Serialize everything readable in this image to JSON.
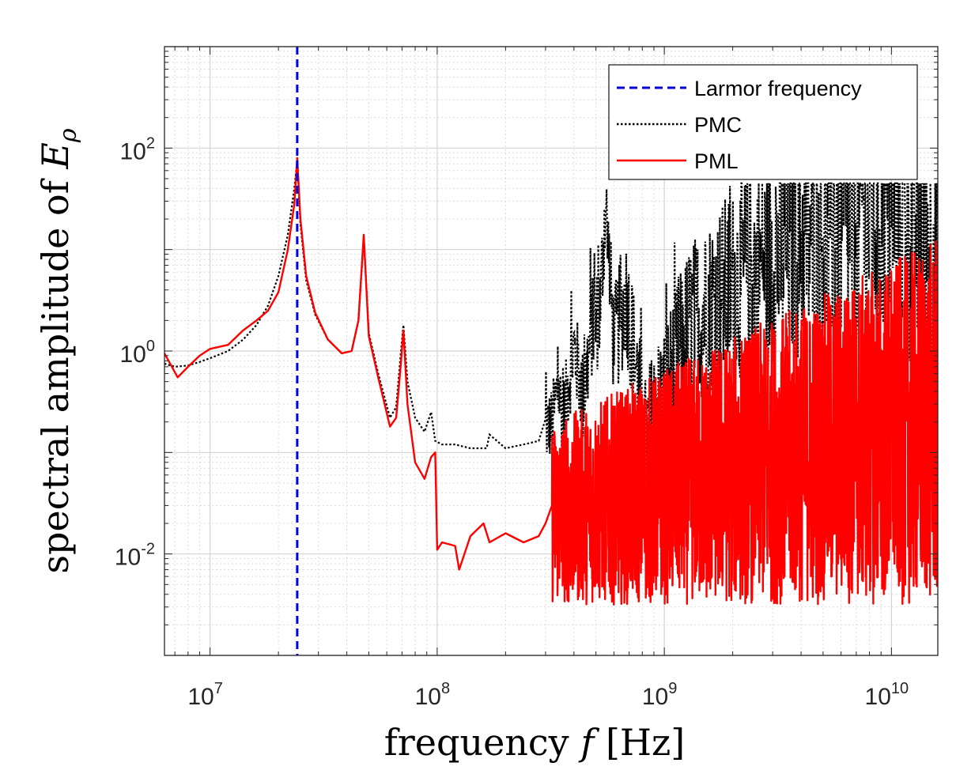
{
  "chart_data": {
    "type": "line",
    "title": "",
    "xlabel": "frequency",
    "xlabel_var": "f",
    "xlabel_unit": "[Hz]",
    "ylabel": "spectral amplitude of",
    "ylabel_var": "E",
    "ylabel_sub": "ρ",
    "xscale": "log",
    "yscale": "log",
    "xlim": [
      6300000.0,
      16000000000.0
    ],
    "ylim": [
      0.001,
      1000
    ],
    "grid": true,
    "minor_grid": true,
    "legend_position": "top-right",
    "x_ticks": [
      {
        "value": 10000000.0,
        "base": "10",
        "exp": "7"
      },
      {
        "value": 100000000.0,
        "base": "10",
        "exp": "8"
      },
      {
        "value": 1000000000.0,
        "base": "10",
        "exp": "9"
      },
      {
        "value": 10000000000.0,
        "base": "10",
        "exp": "10"
      }
    ],
    "y_ticks": [
      {
        "value": 100,
        "base": "10",
        "exp": "2"
      },
      {
        "value": 1,
        "base": "10",
        "exp": "0"
      },
      {
        "value": 0.01,
        "base": "10",
        "exp": "-2"
      }
    ],
    "series": [
      {
        "name": "Larmor frequency",
        "style": "dashed",
        "color": "#0000dd",
        "type": "vline",
        "x_value": 24200000.0
      },
      {
        "name": "PMC",
        "style": "dotted",
        "color": "#000000",
        "x": [
          6300000.0,
          7000000.0,
          8000000.0,
          9000000.0,
          10000000.0,
          12000000.0,
          14000000.0,
          16000000.0,
          18000000.0,
          20000000.0,
          22000000.0,
          23500000.0,
          24200000.0,
          25000000.0,
          26500000.0,
          29000000.0,
          33000000.0,
          38000000.0,
          42000000.0,
          45000000.0,
          47500000.0,
          50000000.0,
          55000000.0,
          62000000.0,
          66000000.0,
          69000000.0,
          71000000.0,
          74000000.0,
          80000000.0,
          88000000.0,
          94000000.0,
          98000000.0,
          105000000.0,
          120000000.0,
          140000000.0,
          165000000.0,
          170000000.0,
          200000000.0,
          240000000.0,
          280000000.0,
          320000000.0,
          340000000.0,
          360000000.0,
          400000000.0,
          440000000.0,
          480000000.0,
          520000000.0,
          550000000.0,
          600000000.0,
          680000000.0,
          750000000.0,
          820000000.0,
          900000000.0,
          1000000000.0,
          1300000000.0,
          1800000000.0,
          2500000000.0,
          3500000000.0,
          5000000000.0,
          7000000000.0,
          10000000000.0,
          13000000000.0,
          16000000000.0
        ],
        "y": [
          0.75,
          0.7,
          0.72,
          0.78,
          0.85,
          1.0,
          1.3,
          1.8,
          2.8,
          5.5,
          14,
          40,
          75,
          18,
          5.0,
          2.3,
          1.3,
          0.95,
          1.0,
          2.0,
          13,
          1.5,
          0.6,
          0.22,
          0.28,
          0.9,
          1.8,
          0.5,
          0.22,
          0.16,
          0.25,
          0.13,
          0.12,
          0.12,
          0.11,
          0.11,
          0.15,
          0.11,
          0.12,
          0.13,
          0.18,
          0.4,
          0.2,
          1.0,
          0.3,
          1.5,
          2.0,
          25,
          1.0,
          3.0,
          0.6,
          0.1,
          0.2,
          0.3,
          1.5,
          3.0,
          5.0,
          8.0,
          12,
          15,
          20,
          15,
          5.0
        ]
      },
      {
        "name": "PML",
        "style": "solid",
        "color": "#ff0000",
        "x": [
          6300000.0,
          7200000.0,
          8000000.0,
          9000000.0,
          10000000.0,
          12000000.0,
          14000000.0,
          16000000.0,
          18000000.0,
          20000000.0,
          22000000.0,
          23500000.0,
          24200000.0,
          25000000.0,
          26500000.0,
          29000000.0,
          33000000.0,
          38000000.0,
          42000000.0,
          45000000.0,
          47500000.0,
          50000000.0,
          55000000.0,
          62000000.0,
          66000000.0,
          69000000.0,
          71000000.0,
          74000000.0,
          80000000.0,
          88000000.0,
          94000000.0,
          98000000.0,
          100000000.0,
          105000000.0,
          120000000.0,
          125000000.0,
          140000000.0,
          160000000.0,
          170000000.0,
          200000000.0,
          240000000.0,
          280000000.0,
          300000000.0,
          320000000.0
        ],
        "y": [
          0.95,
          0.55,
          0.7,
          0.9,
          1.05,
          1.15,
          1.6,
          2.0,
          2.5,
          3.8,
          10,
          28,
          80,
          20,
          5.5,
          2.4,
          1.3,
          0.95,
          1.0,
          2.0,
          14,
          1.4,
          0.55,
          0.18,
          0.22,
          0.7,
          1.6,
          0.3,
          0.08,
          0.055,
          0.09,
          0.1,
          0.011,
          0.013,
          0.012,
          0.007,
          0.015,
          0.02,
          0.013,
          0.016,
          0.013,
          0.015,
          0.02,
          0.03
        ]
      }
    ],
    "noise_region": {
      "x_start": 300000000.0,
      "x_end": 16000000000.0,
      "pmc_envelope_low": 0.05,
      "pmc_envelope_high": 30,
      "pml_envelope_low": 0.002,
      "pml_envelope_high": 10
    },
    "colors": {
      "larmor": "#0000dd",
      "pmc": "#000000",
      "pml": "#ff0000",
      "grid": "#d9d9d9",
      "axis": "#262626"
    }
  }
}
